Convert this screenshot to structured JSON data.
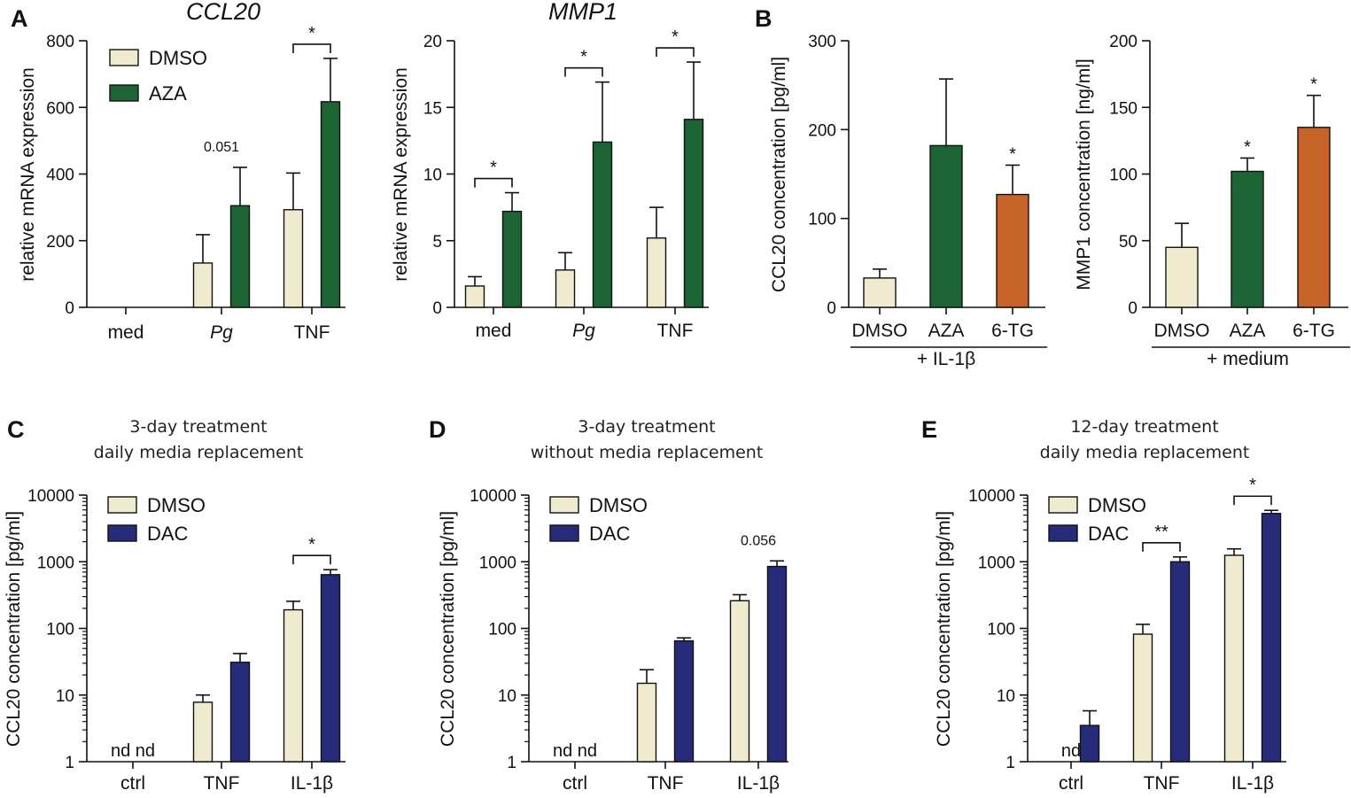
{
  "colors": {
    "dmso": "#f0ebcf",
    "aza": "#1c6434",
    "tg": "#c8642a",
    "dac": "#272c7a"
  },
  "chart_data": [
    {
      "panel": "A",
      "title": "CCL20",
      "type": "bar",
      "ylabel": "relative mRNA expression",
      "ylim": [
        0,
        800
      ],
      "yticks": [
        "0",
        "200",
        "400",
        "600",
        "800"
      ],
      "categories": [
        "med",
        "Pg",
        "TNF"
      ],
      "italic_categories": [
        "Pg"
      ],
      "legend": [
        "DMSO",
        "AZA"
      ],
      "series": [
        {
          "name": "DMSO",
          "color": "dmso",
          "values": [
            0,
            133,
            293
          ],
          "errors": [
            0,
            85,
            110
          ]
        },
        {
          "name": "AZA",
          "color": "aza",
          "values": [
            0,
            305,
            617
          ],
          "errors": [
            0,
            115,
            130
          ]
        }
      ],
      "annotations": [
        {
          "category": 1,
          "text": "0.051"
        }
      ],
      "brackets": [
        {
          "category": 2,
          "text": "*"
        }
      ]
    },
    {
      "panel": "",
      "title": "MMP1",
      "type": "bar",
      "ylabel": "relative mRNA expression",
      "ylim": [
        0,
        20
      ],
      "yticks": [
        "0",
        "5",
        "10",
        "15",
        "20"
      ],
      "categories": [
        "med",
        "Pg",
        "TNF"
      ],
      "italic_categories": [
        "Pg"
      ],
      "series": [
        {
          "name": "DMSO",
          "color": "dmso",
          "values": [
            1.6,
            2.8,
            5.2
          ],
          "errors": [
            0.7,
            1.3,
            2.3
          ]
        },
        {
          "name": "AZA",
          "color": "aza",
          "values": [
            7.2,
            12.4,
            14.1
          ],
          "errors": [
            1.4,
            4.5,
            4.3
          ]
        }
      ],
      "brackets": [
        {
          "category": 0,
          "text": "*"
        },
        {
          "category": 1,
          "text": "*"
        },
        {
          "category": 2,
          "text": "*"
        }
      ]
    },
    {
      "panel": "B",
      "type": "bar",
      "ylabel": "CCL20 concentration [pg/ml]",
      "ylim": [
        0,
        300
      ],
      "yticks": [
        "0",
        "100",
        "200",
        "300"
      ],
      "categories": [
        "DMSO",
        "AZA",
        "6-TG"
      ],
      "group_label": "+ IL-1β",
      "bars": [
        {
          "value": 33,
          "error": 10,
          "color": "dmso"
        },
        {
          "value": 182,
          "error": 75,
          "color": "aza"
        },
        {
          "value": 127,
          "error": 33,
          "color": "tg",
          "star": "*"
        }
      ]
    },
    {
      "panel": "",
      "type": "bar",
      "ylabel": "MMP1 concentration [ng/ml]",
      "ylim": [
        0,
        200
      ],
      "yticks": [
        "0",
        "50",
        "100",
        "150",
        "200"
      ],
      "categories": [
        "DMSO",
        "AZA",
        "6-TG"
      ],
      "group_label": "+ medium",
      "bars": [
        {
          "value": 45,
          "error": 18,
          "color": "dmso"
        },
        {
          "value": 102,
          "error": 10,
          "color": "aza",
          "star": "*"
        },
        {
          "value": 135,
          "error": 24,
          "color": "tg",
          "star": "*"
        }
      ]
    },
    {
      "panel": "C",
      "type": "bar",
      "scale": "log",
      "subtitle": [
        "3-day treatment",
        "daily media replacement"
      ],
      "ylabel": "CCL20 concentration [pg/ml]",
      "ylim": [
        1,
        10000
      ],
      "yticks": [
        "1",
        "10",
        "100",
        "1000",
        "10000"
      ],
      "categories": [
        "ctrl",
        "TNF",
        "IL-1β"
      ],
      "legend": [
        "DMSO",
        "DAC"
      ],
      "series": [
        {
          "name": "DMSO",
          "color": "dmso",
          "values": [
            null,
            7.8,
            190
          ],
          "err_high": [
            null,
            10,
            255
          ]
        },
        {
          "name": "DAC",
          "color": "dac",
          "values": [
            null,
            31,
            640
          ],
          "err_high": [
            null,
            42,
            760
          ]
        }
      ],
      "nd": [
        {
          "category": 0,
          "text": "nd nd"
        }
      ],
      "brackets": [
        {
          "category": 2,
          "text": "*"
        }
      ]
    },
    {
      "panel": "D",
      "type": "bar",
      "scale": "log",
      "subtitle": [
        "3-day treatment",
        "without media replacement"
      ],
      "ylabel": "CCL20 concentration [pg/ml]",
      "ylim": [
        1,
        10000
      ],
      "yticks": [
        "1",
        "10",
        "100",
        "1000",
        "10000"
      ],
      "categories": [
        "ctrl",
        "TNF",
        "IL-1β"
      ],
      "legend": [
        "DMSO",
        "DAC"
      ],
      "series": [
        {
          "name": "DMSO",
          "color": "dmso",
          "values": [
            null,
            15,
            260
          ],
          "err_high": [
            null,
            24,
            320
          ]
        },
        {
          "name": "DAC",
          "color": "dac",
          "values": [
            null,
            65,
            850
          ],
          "err_high": [
            null,
            72,
            1030
          ]
        }
      ],
      "nd": [
        {
          "category": 0,
          "text": "nd nd"
        }
      ],
      "annotations": [
        {
          "category": 2,
          "text": "0.056"
        }
      ]
    },
    {
      "panel": "E",
      "type": "bar",
      "scale": "log",
      "subtitle": [
        "12-day treatment",
        "daily media replacement"
      ],
      "ylabel": "CCL20 concentration [pg/ml]",
      "ylim": [
        1,
        10000
      ],
      "yticks": [
        "1",
        "10",
        "100",
        "1000",
        "10000"
      ],
      "categories": [
        "ctrl",
        "TNF",
        "IL-1β"
      ],
      "legend": [
        "DMSO",
        "DAC"
      ],
      "series": [
        {
          "name": "DMSO",
          "color": "dmso",
          "values": [
            null,
            82,
            1250
          ],
          "err_high": [
            null,
            115,
            1560
          ]
        },
        {
          "name": "DAC",
          "color": "dac",
          "values": [
            3.5,
            1000,
            5300
          ],
          "err_high": [
            5.8,
            1180,
            5900
          ]
        }
      ],
      "nd": [
        {
          "category": 0,
          "text": "nd"
        }
      ],
      "brackets": [
        {
          "category": 1,
          "text": "**"
        },
        {
          "category": 2,
          "text": "*"
        }
      ]
    }
  ]
}
